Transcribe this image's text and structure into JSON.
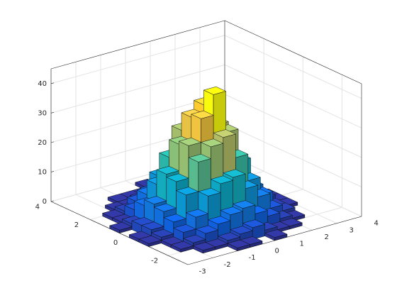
{
  "chart_data": {
    "type": "histogram2",
    "xbins": [
      -3,
      -2.5,
      -2,
      -1.5,
      -1,
      -0.5,
      0,
      0.5,
      1,
      1.5,
      2,
      2.5,
      3,
      3.5
    ],
    "ybins": [
      -3,
      -2.5,
      -2,
      -1.5,
      -1,
      -0.5,
      0,
      0.5,
      1,
      1.5,
      2,
      2.5,
      3,
      3.5
    ],
    "counts": [
      [
        0,
        0,
        0,
        0,
        1,
        1,
        0,
        1,
        0,
        0,
        0,
        0,
        0
      ],
      [
        0,
        0,
        1,
        1,
        2,
        3,
        4,
        2,
        1,
        1,
        0,
        0,
        0
      ],
      [
        0,
        1,
        2,
        4,
        6,
        8,
        9,
        6,
        4,
        2,
        1,
        0,
        0
      ],
      [
        0,
        1,
        4,
        8,
        14,
        17,
        18,
        13,
        9,
        4,
        2,
        0,
        0
      ],
      [
        1,
        2,
        6,
        14,
        24,
        28,
        30,
        22,
        13,
        7,
        2,
        1,
        0
      ],
      [
        1,
        3,
        8,
        17,
        28,
        36,
        43,
        29,
        18,
        8,
        3,
        1,
        0
      ],
      [
        0,
        3,
        9,
        18,
        27,
        35,
        38,
        30,
        17,
        9,
        3,
        1,
        0
      ],
      [
        1,
        2,
        7,
        13,
        21,
        29,
        27,
        23,
        14,
        6,
        3,
        0,
        0
      ],
      [
        0,
        1,
        4,
        8,
        13,
        16,
        17,
        14,
        8,
        4,
        1,
        1,
        0
      ],
      [
        0,
        1,
        2,
        4,
        6,
        7,
        8,
        6,
        4,
        2,
        1,
        0,
        0
      ],
      [
        0,
        0,
        1,
        1,
        2,
        3,
        3,
        2,
        1,
        1,
        0,
        0,
        0
      ],
      [
        0,
        0,
        0,
        1,
        1,
        1,
        0,
        1,
        0,
        0,
        0,
        0,
        0
      ],
      [
        0,
        0,
        0,
        0,
        0,
        0,
        1,
        0,
        0,
        0,
        0,
        0,
        0
      ]
    ],
    "xlim": [
      -3,
      4
    ],
    "ylim": [
      -3,
      4
    ],
    "zlim": [
      0,
      45
    ],
    "xticks": [
      -3,
      -2,
      -1,
      0,
      1,
      2,
      3,
      4
    ],
    "yticks": [
      -2,
      0,
      2,
      4
    ],
    "zticks": [
      0,
      10,
      20,
      30,
      40
    ],
    "grid": true,
    "colormap": [
      "#352a87",
      "#0f5cdd",
      "#1481d6",
      "#06a4ca",
      "#2eb7a4",
      "#87bf77",
      "#d1bb59",
      "#fec832",
      "#f9fb0e"
    ]
  }
}
